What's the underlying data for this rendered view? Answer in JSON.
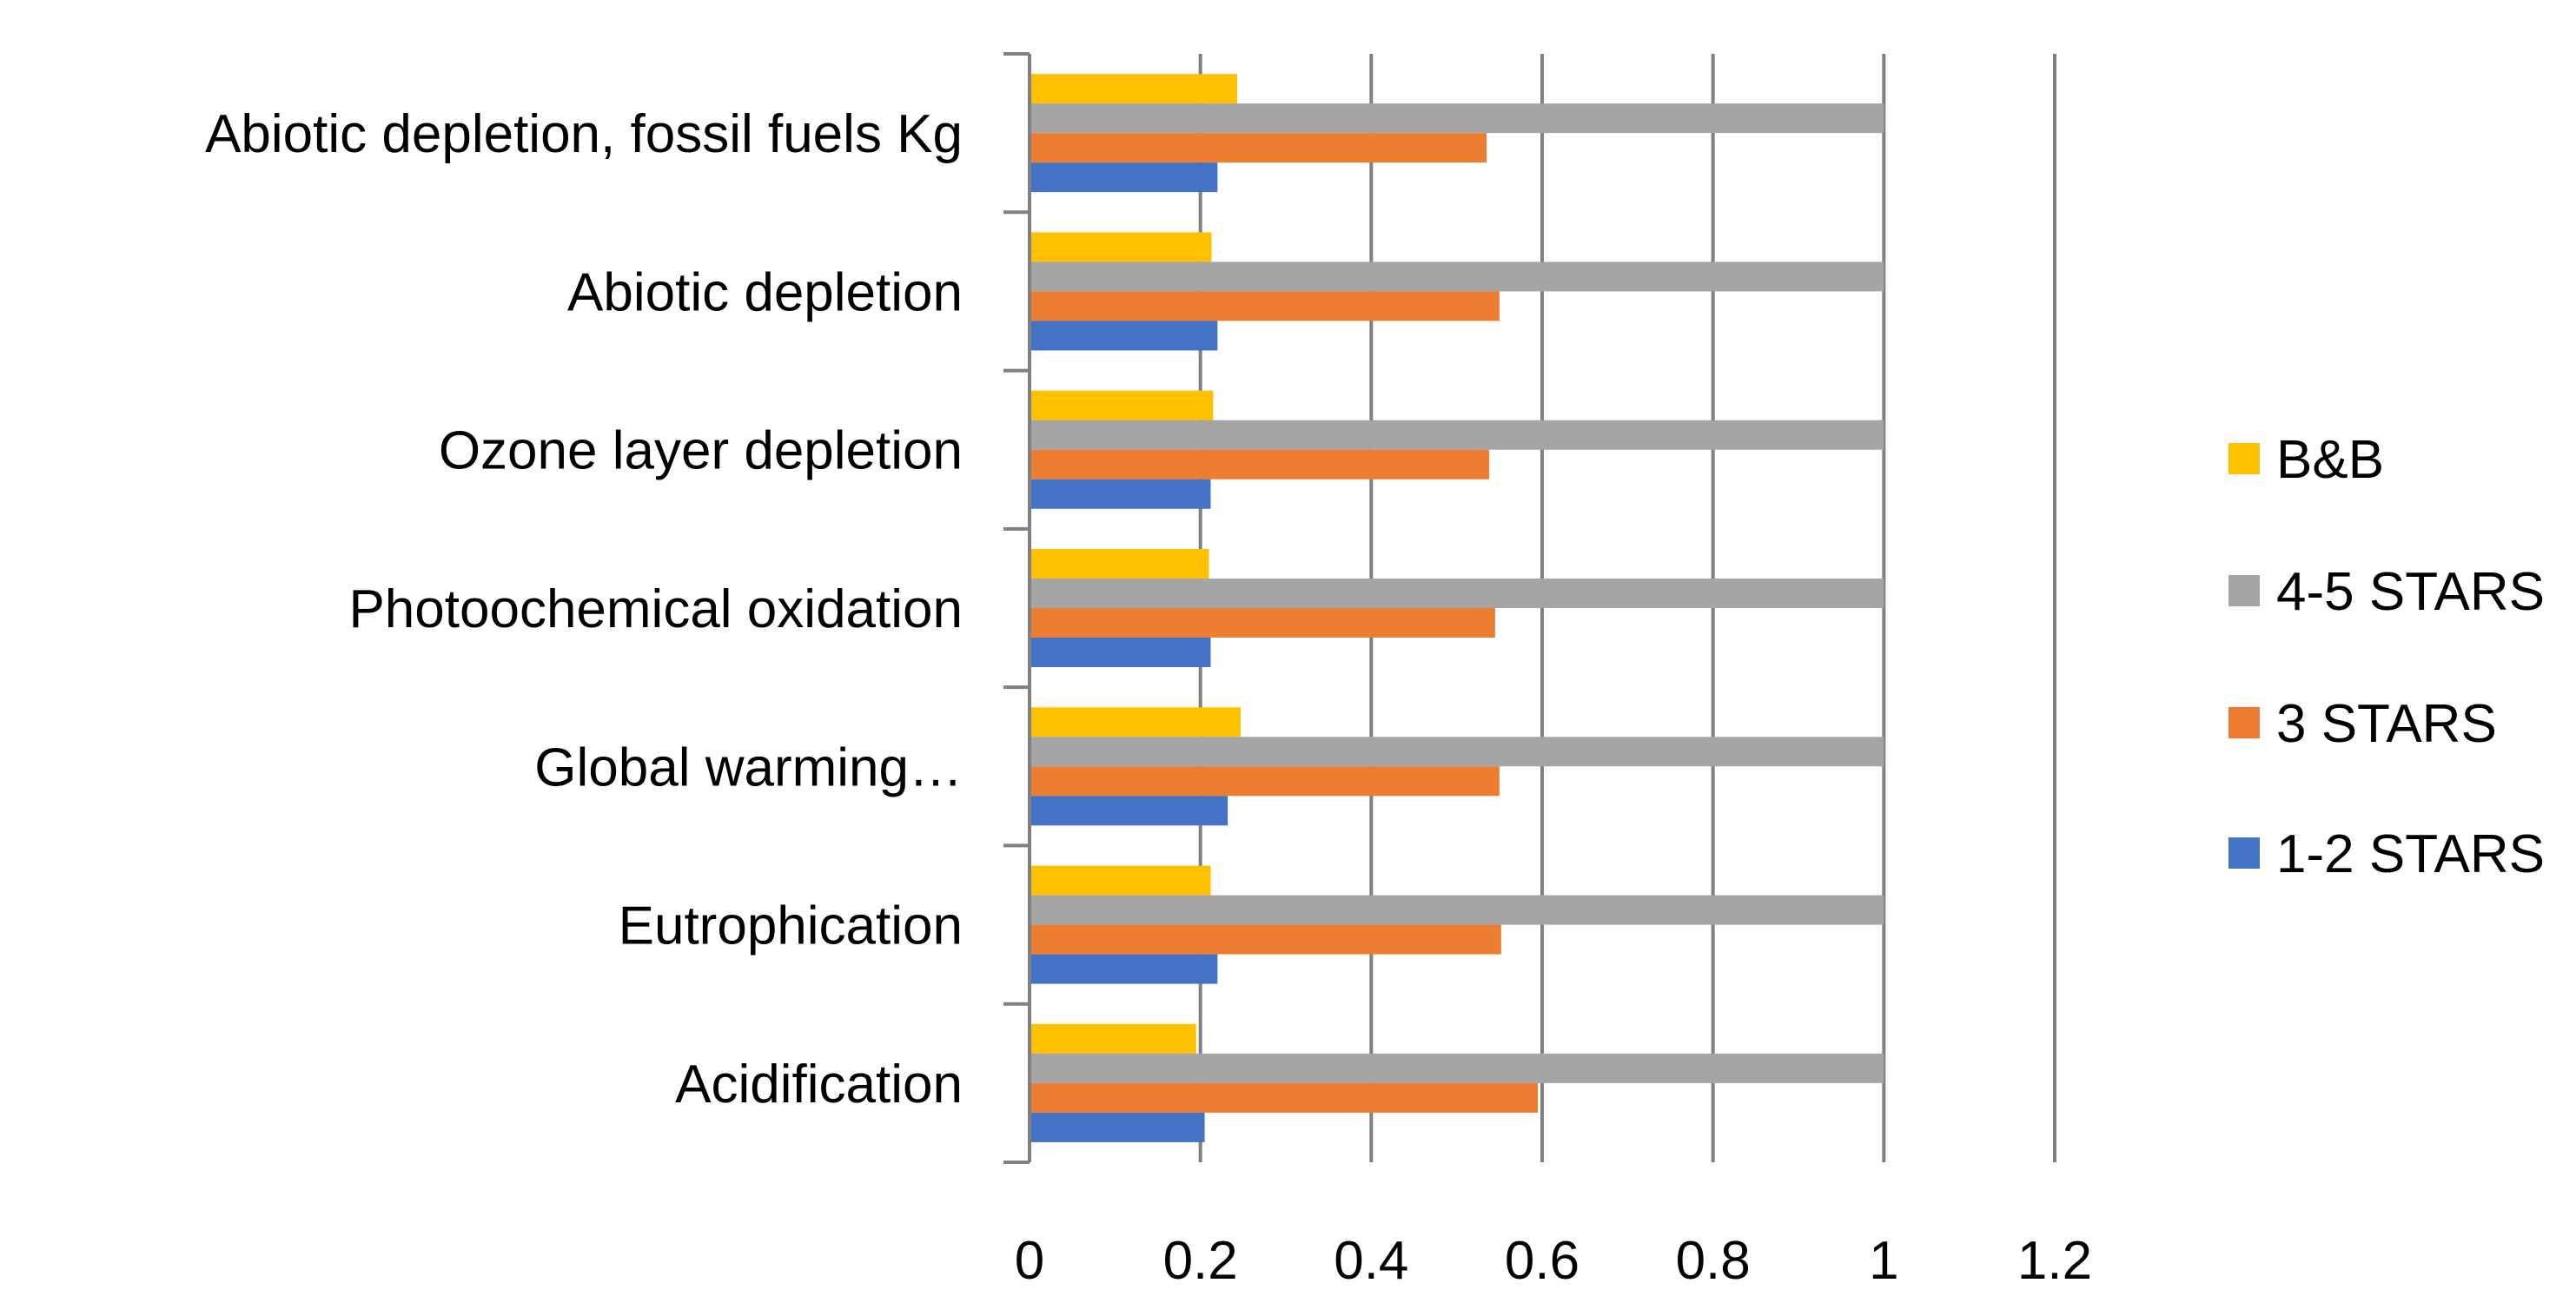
{
  "chart_data": {
    "type": "bar",
    "orientation": "horizontal",
    "title": "",
    "xlabel": "",
    "ylabel": "",
    "xlim": [
      0,
      1.2
    ],
    "x_ticks": [
      "0",
      "0.2",
      "0.4",
      "0.6",
      "0.8",
      "1",
      "1.2"
    ],
    "grid": true,
    "legend_position": "right",
    "categories": [
      "Acidification",
      "Eutrophication",
      "Global warming…",
      "Photoochemical oxidation",
      "Ozone layer depletion",
      "Abiotic depletion",
      "Abiotic depletion, fossil fuels Kg"
    ],
    "series": [
      {
        "name": "1-2 STARS",
        "color": "#4472C4",
        "values": [
          0.205,
          0.22,
          0.232,
          0.212,
          0.212,
          0.22,
          0.22
        ]
      },
      {
        "name": "3 STARS",
        "color": "#ED7D31",
        "values": [
          0.595,
          0.552,
          0.55,
          0.545,
          0.538,
          0.55,
          0.535
        ]
      },
      {
        "name": "4-5 STARS",
        "color": "#A5A5A5",
        "values": [
          1,
          1,
          1,
          1,
          1,
          1,
          1
        ]
      },
      {
        "name": "B&B",
        "color": "#FFC000",
        "values": [
          0.195,
          0.212,
          0.247,
          0.21,
          0.215,
          0.213,
          0.243
        ]
      }
    ],
    "legend_order": [
      "B&B",
      "4-5 STARS",
      "3 STARS",
      "1-2 STARS"
    ]
  }
}
